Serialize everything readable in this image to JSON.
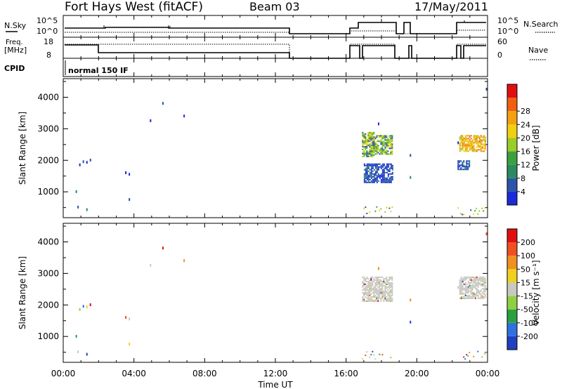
{
  "header": {
    "station": "Fort Hays West (fitACF)",
    "beam": "Beam 03",
    "date": "17/May/2011"
  },
  "control_panels": {
    "nsky_label": "N.Sky",
    "nsearch_label": "N.Search",
    "noise_ticks": [
      "10^5",
      "10^0"
    ],
    "freq_label_line1": "Freq.",
    "freq_label_line2": "[MHz]",
    "freq_ticks": [
      "18",
      "8"
    ],
    "nave_label": "Nave",
    "nave_ticks": [
      "60",
      "0"
    ],
    "cpid_label": "CPID",
    "cpid_value": "normal 150 IF",
    "legend_solid": "solid",
    "legend_dotted": "dotted"
  },
  "x_axis": {
    "label": "Time UT",
    "ticks": [
      "00:00",
      "04:00",
      "08:00",
      "12:00",
      "16:00",
      "20:00",
      "00:00"
    ],
    "range_hours": [
      0,
      24
    ]
  },
  "chart_data": [
    {
      "type": "heatmap",
      "name": "power",
      "ylabel": "Slant Range [km]",
      "ylim": [
        180,
        4590
      ],
      "yticks": [
        "1000",
        "2000",
        "3000",
        "4000"
      ],
      "colorbar_label": "Power [dB]",
      "colorbar_ticks": [
        "4",
        "8",
        "12",
        "16",
        "20",
        "24",
        "28"
      ],
      "colorbar_colors": [
        "#1b2bd8",
        "#2a55a8",
        "#2a8a60",
        "#3ca040",
        "#9ccc28",
        "#f0d010",
        "#f5a010",
        "#f06010",
        "#e01010"
      ],
      "data_regions": [
        {
          "t": [
            16.9,
            17.6
          ],
          "r": [
            2100,
            2900
          ],
          "level": "mid-high"
        },
        {
          "t": [
            17.3,
            18.6
          ],
          "r": [
            2200,
            2800
          ],
          "level": "mid-high"
        },
        {
          "t": [
            22.4,
            23.9
          ],
          "r": [
            2300,
            2800
          ],
          "level": "high"
        },
        {
          "t": [
            17.0,
            18.6
          ],
          "r": [
            1300,
            1900
          ],
          "level": "low"
        },
        {
          "t": [
            22.3,
            23.0
          ],
          "r": [
            1700,
            2000
          ],
          "level": "low"
        }
      ]
    },
    {
      "type": "heatmap",
      "name": "velocity",
      "ylabel": "Slant Range [km]",
      "ylim": [
        180,
        4590
      ],
      "yticks": [
        "1000",
        "2000",
        "3000",
        "4000"
      ],
      "colorbar_label": "Velocity [m s⁻¹]",
      "colorbar_ticks": [
        "200",
        "100",
        "50",
        "15",
        "-15",
        "-50",
        "-100",
        "-200"
      ],
      "colorbar_colors": [
        "#2040c0",
        "#3070e0",
        "#2aa040",
        "#90d040",
        "#c8c8c0",
        "#f0d020",
        "#f09020",
        "#f05020",
        "#e01010"
      ],
      "data_regions": [
        {
          "t": [
            16.9,
            18.6
          ],
          "r": [
            2100,
            2900
          ],
          "level": "ground-scatter"
        },
        {
          "t": [
            22.4,
            23.9
          ],
          "r": [
            2200,
            2900
          ],
          "level": "ground-scatter"
        }
      ]
    }
  ]
}
